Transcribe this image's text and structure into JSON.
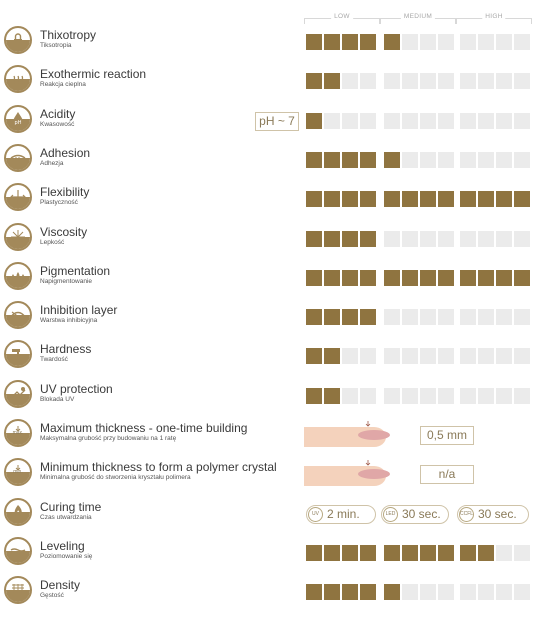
{
  "scale": {
    "low": "LOW",
    "medium": "MEDIUM",
    "high": "HIGH"
  },
  "colors": {
    "filled": "#8f7440",
    "empty": "#ebebeb",
    "icon": "#a3895a",
    "badge_text": "#8a7a58"
  },
  "properties": [
    {
      "title": "Thixotropy",
      "subtitle": "Tiksotropia",
      "level": 5,
      "icon": "padlock-icon"
    },
    {
      "title": "Exothermic reaction",
      "subtitle": "Reakcja cieplna",
      "level": 2,
      "icon": "heat-icon"
    },
    {
      "title": "Acidity",
      "subtitle": "Kwasowość",
      "level": 1,
      "badge": "pH ~ 7",
      "icon": "ph-drop-icon"
    },
    {
      "title": "Adhesion",
      "subtitle": "Adhezja",
      "level": 5,
      "icon": "adhesion-icon"
    },
    {
      "title": "Flexibility",
      "subtitle": "Plastyczność",
      "level": 12,
      "icon": "flex-arrows-icon"
    },
    {
      "title": "Viscosity",
      "subtitle": "Lepkość",
      "level": 4,
      "icon": "viscosity-icon"
    },
    {
      "title": "Pigmentation",
      "subtitle": "Napigmentowanie",
      "level": 12,
      "icon": "drops-icon"
    },
    {
      "title": "Inhibition layer",
      "subtitle": "Warstwa inhibicyjna",
      "level": 4,
      "icon": "layer-icon"
    },
    {
      "title": "Hardness",
      "subtitle": "Twardość",
      "level": 2,
      "icon": "hammer-icon"
    },
    {
      "title": "UV protection",
      "subtitle": "Blokada UV",
      "level": 2,
      "icon": "uv-icon"
    },
    {
      "title": "Maximum thickness - one-time building",
      "subtitle": "Maksymalna grubość przy budowaniu na 1 ratę",
      "icon_text": "max.",
      "finger": true,
      "badge": "0,5 mm",
      "icon": "max-thickness-icon"
    },
    {
      "title": "Minimum thickness to form a polymer crystal",
      "subtitle": "Minimalna grubość do stworzenia kryształu polimera",
      "icon_text": "min.",
      "finger": true,
      "badge": "n/a",
      "icon": "min-thickness-icon"
    },
    {
      "title": "Curing time",
      "subtitle": "Czas utwardzania",
      "icon": "flame-icon",
      "curing": [
        {
          "lamp": "UV",
          "time": "2 min."
        },
        {
          "lamp": "LED",
          "time": "30 sec."
        },
        {
          "lamp": "CCFL",
          "time": "30 sec."
        }
      ]
    },
    {
      "title": "Leveling",
      "subtitle": "Poziomowanie się",
      "level": 10,
      "icon": "leveling-icon"
    },
    {
      "title": "Density",
      "subtitle": "Gęstość",
      "level": 5,
      "icon": "density-icon"
    }
  ]
}
